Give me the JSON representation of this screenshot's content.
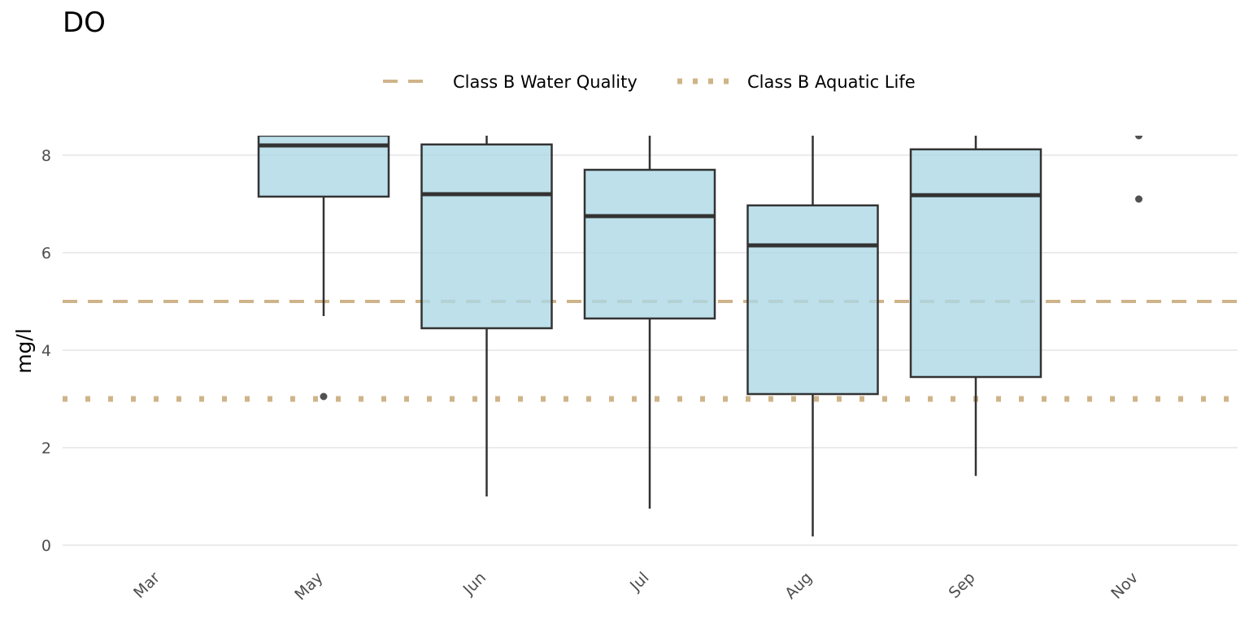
{
  "chart_data": {
    "type": "box",
    "title": "DO",
    "xlabel": "",
    "ylabel": "mg/l",
    "ylim": [
      0,
      8.4
    ],
    "y_ticks": [
      0,
      2,
      4,
      6,
      8
    ],
    "grid": "horizontal",
    "legend_position": "top",
    "categories": [
      "Mar",
      "May",
      "Jun",
      "Jul",
      "Aug",
      "Sep",
      "Nov"
    ],
    "boxes": [
      {
        "category": "Mar"
      },
      {
        "category": "May",
        "whisker_low": 4.7,
        "q1": 7.15,
        "median": 8.2,
        "q3": 8.4,
        "whisker_high": 8.4,
        "outliers": [
          3.05
        ]
      },
      {
        "category": "Jun",
        "whisker_low": 1.0,
        "q1": 4.45,
        "median": 7.2,
        "q3": 8.22,
        "whisker_high": 8.4,
        "outliers": []
      },
      {
        "category": "Jul",
        "whisker_low": 0.75,
        "q1": 4.65,
        "median": 6.75,
        "q3": 7.7,
        "whisker_high": 8.4,
        "outliers": []
      },
      {
        "category": "Aug",
        "whisker_low": 0.18,
        "q1": 3.1,
        "median": 6.15,
        "q3": 6.97,
        "whisker_high": 8.4,
        "outliers": []
      },
      {
        "category": "Sep",
        "whisker_low": 1.42,
        "q1": 3.45,
        "median": 7.18,
        "q3": 8.12,
        "whisker_high": 8.4,
        "outliers": []
      },
      {
        "category": "Nov",
        "outliers": [
          7.1,
          8.4
        ]
      }
    ],
    "reference_lines": [
      {
        "name": "Class B Water Quality",
        "value": 5,
        "style": "dashed",
        "color": "#cfb48a"
      },
      {
        "name": "Class B Aquatic Life",
        "value": 3,
        "style": "dotted",
        "color": "#cfb48a"
      }
    ],
    "colors": {
      "box_fill": "#add8e6",
      "box_line": "#333333",
      "grid": "#ebebeb",
      "outlier": "#333333"
    }
  }
}
